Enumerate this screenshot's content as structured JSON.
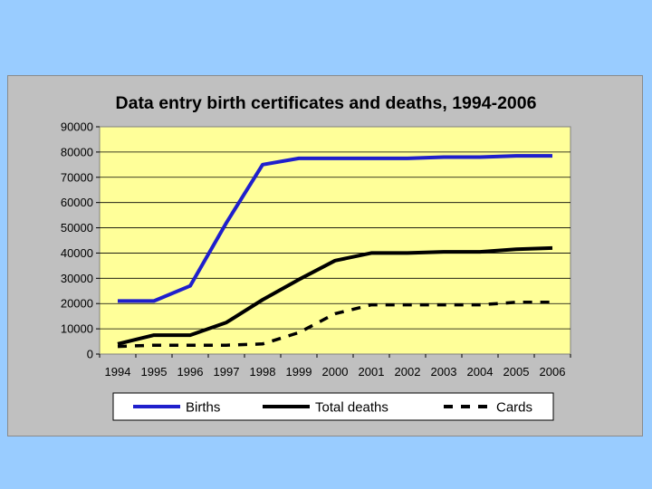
{
  "chart_data": {
    "type": "line",
    "title": "Data entry birth certificates and deaths, 1994-2006",
    "xlabel": "",
    "ylabel": "",
    "categories": [
      "1994",
      "1995",
      "1996",
      "1997",
      "1998",
      "1999",
      "2000",
      "2001",
      "2002",
      "2003",
      "2004",
      "2005",
      "2006"
    ],
    "ylim": [
      0,
      90000
    ],
    "yticks": [
      0,
      10000,
      20000,
      30000,
      40000,
      50000,
      60000,
      70000,
      80000,
      90000
    ],
    "grid": true,
    "legend_position": "bottom",
    "series": [
      {
        "name": "Births",
        "color": "#1f1fcc",
        "style": "solid",
        "values": [
          21000,
          21000,
          27000,
          52000,
          75000,
          77500,
          77500,
          77500,
          77500,
          78000,
          78000,
          78500,
          78500
        ]
      },
      {
        "name": "Total deaths",
        "color": "#000000",
        "style": "solid",
        "values": [
          4000,
          7500,
          7500,
          12500,
          21500,
          29500,
          37000,
          40000,
          40000,
          40500,
          40500,
          41500,
          42000
        ]
      },
      {
        "name": "Cards",
        "color": "#000000",
        "style": "dashed",
        "values": [
          3000,
          3500,
          3500,
          3500,
          4000,
          8500,
          16000,
          19500,
          19500,
          19500,
          19500,
          20500,
          20500
        ]
      }
    ]
  },
  "colors": {
    "page_background": "#99ccff",
    "chart_area": "#c0c0c0",
    "plot_area": "#ffff99"
  }
}
